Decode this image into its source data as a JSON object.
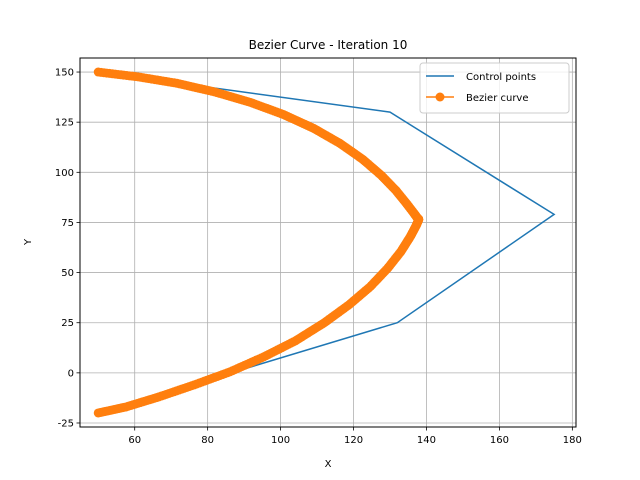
{
  "chart_data": {
    "type": "line",
    "title": "Bezier Curve - Iteration 10",
    "xlabel": "X",
    "ylabel": "Y",
    "xlim": [
      45,
      181
    ],
    "ylim": [
      -27,
      157
    ],
    "xticks": [
      60,
      80,
      100,
      120,
      140,
      160,
      180
    ],
    "yticks": [
      -25,
      0,
      25,
      50,
      75,
      100,
      125,
      150
    ],
    "grid": true,
    "legend_position": "top-right",
    "colors": {
      "control": "#1f77b4",
      "curve": "#ff7f0e"
    },
    "series": [
      {
        "name": "Control points",
        "style": "line",
        "x": [
          50,
          130,
          175,
          132,
          50
        ],
        "y": [
          150,
          130,
          79,
          25,
          -20
        ]
      },
      {
        "name": "Bezier curve",
        "style": "line-marker",
        "x": [
          50.0,
          60.9,
          71.6,
          81.9,
          91.7,
          100.8,
          109.1,
          116.3,
          122.5,
          127.6,
          131.6,
          134.5,
          136.6,
          137.6,
          137.9,
          137.2,
          135.6,
          133.0,
          129.3,
          124.6,
          118.8,
          112.0,
          104.1,
          95.4,
          86.1,
          76.3,
          66.6,
          57.6,
          50.0
        ],
        "y": [
          150.0,
          147.6,
          144.4,
          140.1,
          134.9,
          128.8,
          121.9,
          114.4,
          106.5,
          98.5,
          91.0,
          84.5,
          79.5,
          77.0,
          76.5,
          73.5,
          68.0,
          60.5,
          52.0,
          43.0,
          34.0,
          25.0,
          16.0,
          8.0,
          0.5,
          -6.0,
          -12.0,
          -17.0,
          -20.0
        ]
      }
    ]
  }
}
